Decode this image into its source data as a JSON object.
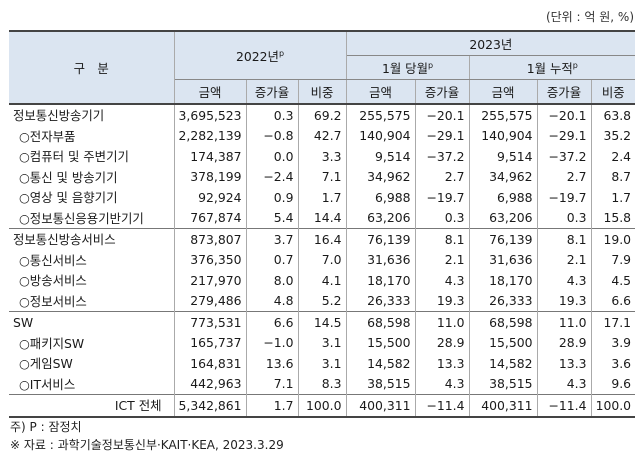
{
  "unit": "(단위 : 억 원, %)",
  "header": {
    "category": "구　분",
    "year2022": "2022년",
    "year2023": "2023년",
    "month_current": "1월 당월",
    "month_cumulative": "1월 누적",
    "superscript": "p",
    "amount": "금액",
    "growth": "증가율",
    "share": "비중"
  },
  "rows": [
    {
      "label": "정보통신방송기기",
      "indent": false,
      "a22": "3,695,523",
      "g22": "0.3",
      "s22": "69.2",
      "am": "255,575",
      "gm": "−20.1",
      "ac": "255,575",
      "gc": "−20.1",
      "sc": "63.8"
    },
    {
      "label": "○전자부품",
      "indent": true,
      "a22": "2,282,139",
      "g22": "−0.8",
      "s22": "42.7",
      "am": "140,904",
      "gm": "−29.1",
      "ac": "140,904",
      "gc": "−29.1",
      "sc": "35.2"
    },
    {
      "label": "○컴퓨터 및 주변기기",
      "indent": true,
      "a22": "174,387",
      "g22": "0.0",
      "s22": "3.3",
      "am": "9,514",
      "gm": "−37.2",
      "ac": "9,514",
      "gc": "−37.2",
      "sc": "2.4"
    },
    {
      "label": "○통신 및 방송기기",
      "indent": true,
      "a22": "378,199",
      "g22": "−2.4",
      "s22": "7.1",
      "am": "34,962",
      "gm": "2.7",
      "ac": "34,962",
      "gc": "2.7",
      "sc": "8.7"
    },
    {
      "label": "○영상 및 음향기기",
      "indent": true,
      "a22": "92,924",
      "g22": "0.9",
      "s22": "1.7",
      "am": "6,988",
      "gm": "−19.7",
      "ac": "6,988",
      "gc": "−19.7",
      "sc": "1.7"
    },
    {
      "label": "○정보통신응용기반기기",
      "indent": true,
      "a22": "767,874",
      "g22": "5.4",
      "s22": "14.4",
      "am": "63,206",
      "gm": "0.3",
      "ac": "63,206",
      "gc": "0.3",
      "sc": "15.8"
    },
    {
      "label": "정보통신방송서비스",
      "indent": false,
      "a22": "873,807",
      "g22": "3.7",
      "s22": "16.4",
      "am": "76,139",
      "gm": "8.1",
      "ac": "76,139",
      "gc": "8.1",
      "sc": "19.0"
    },
    {
      "label": "○통신서비스",
      "indent": true,
      "a22": "376,350",
      "g22": "0.7",
      "s22": "7.0",
      "am": "31,636",
      "gm": "2.1",
      "ac": "31,636",
      "gc": "2.1",
      "sc": "7.9"
    },
    {
      "label": "○방송서비스",
      "indent": true,
      "a22": "217,970",
      "g22": "8.0",
      "s22": "4.1",
      "am": "18,170",
      "gm": "4.3",
      "ac": "18,170",
      "gc": "4.3",
      "sc": "4.5"
    },
    {
      "label": "○정보서비스",
      "indent": true,
      "a22": "279,486",
      "g22": "4.8",
      "s22": "5.2",
      "am": "26,333",
      "gm": "19.3",
      "ac": "26,333",
      "gc": "19.3",
      "sc": "6.6"
    },
    {
      "label": "SW",
      "indent": false,
      "a22": "773,531",
      "g22": "6.6",
      "s22": "14.5",
      "am": "68,598",
      "gm": "11.0",
      "ac": "68,598",
      "gc": "11.0",
      "sc": "17.1"
    },
    {
      "label": "○패키지SW",
      "indent": true,
      "a22": "165,737",
      "g22": "−1.0",
      "s22": "3.1",
      "am": "15,500",
      "gm": "28.9",
      "ac": "15,500",
      "gc": "28.9",
      "sc": "3.9"
    },
    {
      "label": "○게임SW",
      "indent": true,
      "a22": "164,831",
      "g22": "13.6",
      "s22": "3.1",
      "am": "14,582",
      "gm": "13.3",
      "ac": "14,582",
      "gc": "13.3",
      "sc": "3.6"
    },
    {
      "label": "○IT서비스",
      "indent": true,
      "a22": "442,963",
      "g22": "7.1",
      "s22": "8.3",
      "am": "38,515",
      "gm": "4.3",
      "ac": "38,515",
      "gc": "4.3",
      "sc": "9.6"
    }
  ],
  "total": {
    "label": "ICT 전체",
    "a22": "5,342,861",
    "g22": "1.7",
    "s22": "100.0",
    "am": "400,311",
    "gm": "−11.4",
    "ac": "400,311",
    "gc": "−11.4",
    "sc": "100.0"
  },
  "notes": {
    "note1": "주) P : 잠정치",
    "note2": "※ 자료 : 과학기술정보통신부·KAIT·KEA, 2023.3.29"
  }
}
